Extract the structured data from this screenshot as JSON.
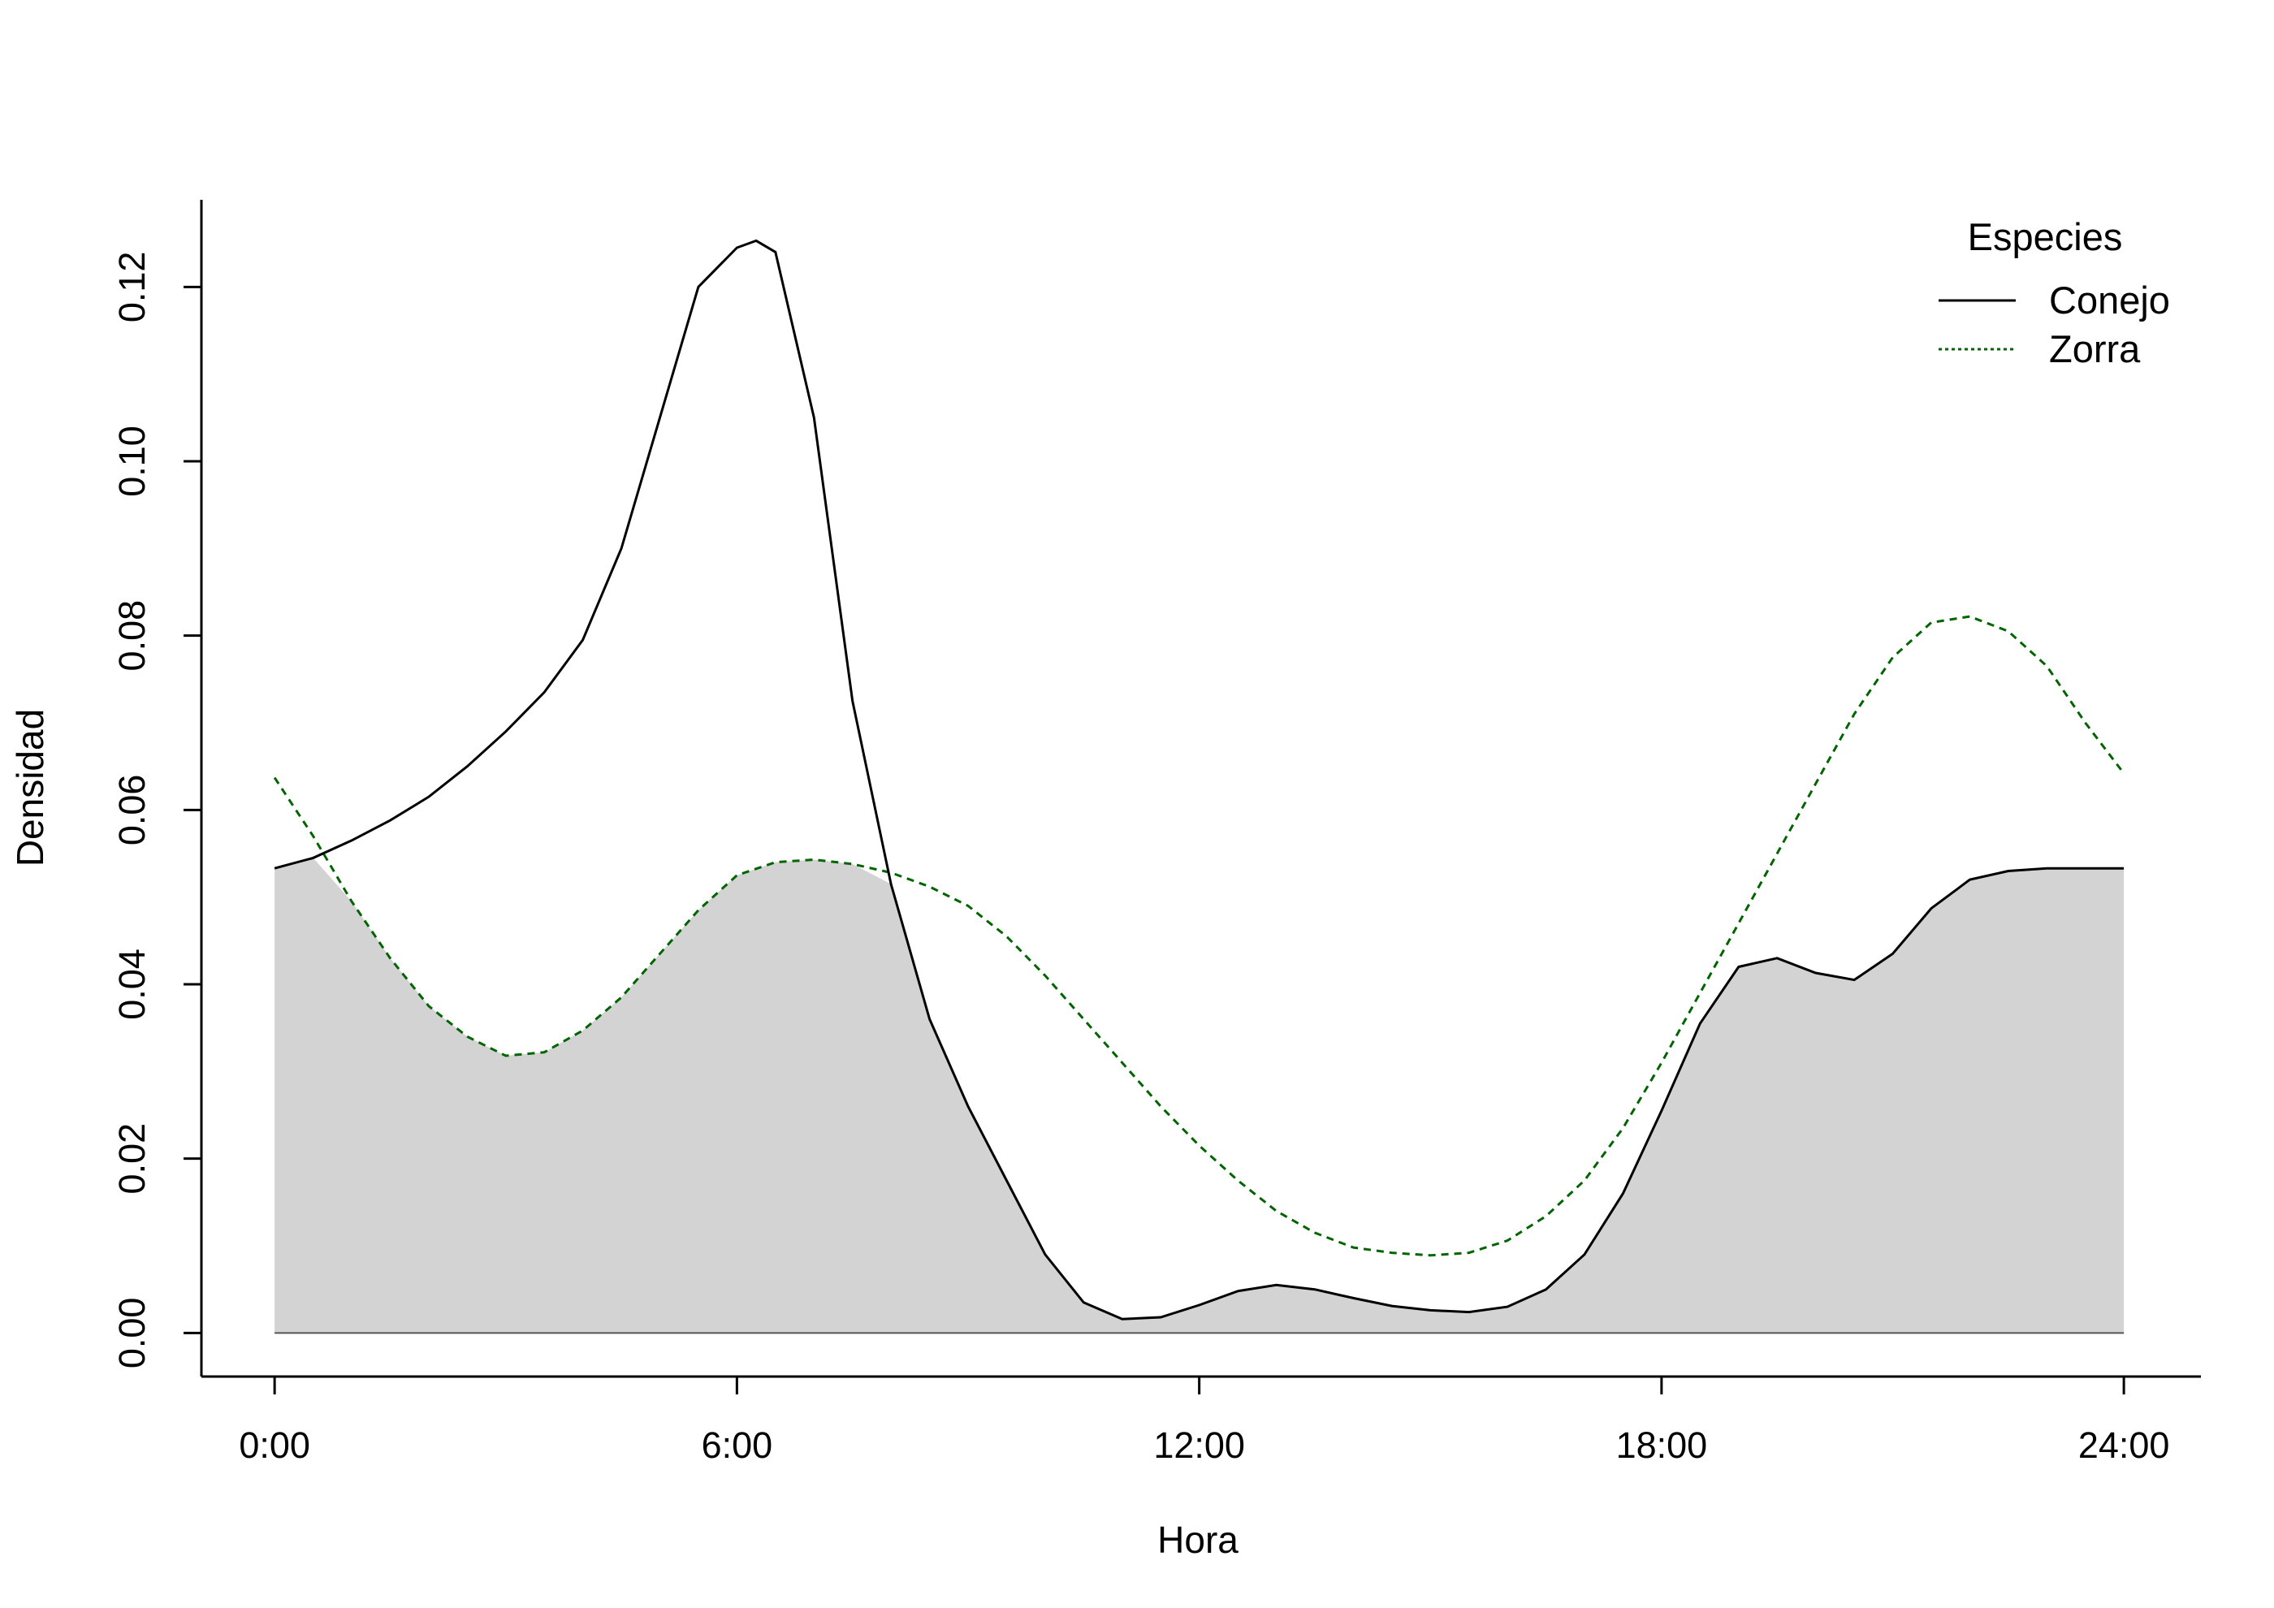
{
  "chart_data": {
    "type": "area",
    "title": "",
    "xlabel": "Hora",
    "ylabel": "Densidad",
    "xlim": [
      -0.95,
      25.0
    ],
    "ylim": [
      -0.005,
      0.13
    ],
    "x_ticks": [
      0,
      6,
      12,
      18,
      24
    ],
    "x_tick_labels": [
      "0:00",
      "6:00",
      "12:00",
      "18:00",
      "24:00"
    ],
    "y_ticks": [
      0.0,
      0.02,
      0.04,
      0.06,
      0.08,
      0.1,
      0.12
    ],
    "y_tick_labels": [
      "0.00",
      "0.02",
      "0.04",
      "0.06",
      "0.08",
      "0.10",
      "0.12"
    ],
    "grid": false,
    "overlap_fill": "#d3d3d3",
    "legend": {
      "title": "Especies",
      "position": "top-right",
      "items": [
        {
          "label": "Conejo",
          "color": "#000000",
          "dash": "solid"
        },
        {
          "label": "Zorra",
          "color": "#006400",
          "dash": "dotted"
        }
      ]
    },
    "series": [
      {
        "name": "Conejo",
        "color": "#000000",
        "dash": "solid",
        "x": [
          0,
          0.5,
          1,
          1.5,
          2,
          2.5,
          3,
          3.5,
          4,
          4.5,
          5,
          5.5,
          6,
          6.25,
          6.5,
          7,
          7.5,
          8,
          8.5,
          9,
          9.5,
          10,
          10.5,
          11,
          11.5,
          12,
          12.5,
          13,
          13.5,
          14,
          14.5,
          15,
          15.5,
          16,
          16.5,
          17,
          17.5,
          18,
          18.5,
          19,
          19.5,
          20,
          20.5,
          21,
          21.5,
          22,
          22.5,
          23,
          23.5,
          24
        ],
        "y": [
          0.0533,
          0.0545,
          0.0565,
          0.0588,
          0.0615,
          0.065,
          0.069,
          0.0735,
          0.0795,
          0.09,
          0.105,
          0.12,
          0.1245,
          0.1253,
          0.124,
          0.105,
          0.0725,
          0.0515,
          0.036,
          0.026,
          0.0175,
          0.009,
          0.0035,
          0.0016,
          0.0018,
          0.0032,
          0.0048,
          0.0055,
          0.005,
          0.004,
          0.0031,
          0.0026,
          0.0024,
          0.003,
          0.005,
          0.009,
          0.016,
          0.0255,
          0.0355,
          0.042,
          0.043,
          0.0413,
          0.0405,
          0.0435,
          0.0487,
          0.052,
          0.053,
          0.0533,
          0.0533,
          0.0533
        ]
      },
      {
        "name": "Zorra",
        "color": "#006400",
        "dash": "dotted",
        "x": [
          0,
          0.5,
          1,
          1.5,
          2,
          2.5,
          3,
          3.5,
          4,
          4.5,
          5,
          5.5,
          6,
          6.5,
          7,
          7.5,
          8,
          8.5,
          9,
          9.5,
          10,
          10.5,
          11,
          11.5,
          12,
          12.5,
          13,
          13.5,
          14,
          14.5,
          15,
          15.5,
          16,
          16.5,
          17,
          17.5,
          18,
          18.5,
          19,
          19.5,
          20,
          20.5,
          21,
          21.5,
          22,
          22.5,
          23,
          23.5,
          24
        ],
        "y": [
          0.0637,
          0.057,
          0.0495,
          0.043,
          0.0375,
          0.034,
          0.0318,
          0.0322,
          0.0347,
          0.0385,
          0.0435,
          0.0485,
          0.0525,
          0.054,
          0.0543,
          0.0538,
          0.0528,
          0.0512,
          0.049,
          0.0455,
          0.041,
          0.036,
          0.031,
          0.026,
          0.0215,
          0.0175,
          0.014,
          0.0115,
          0.0098,
          0.0092,
          0.0089,
          0.0092,
          0.0106,
          0.0134,
          0.0175,
          0.0235,
          0.031,
          0.039,
          0.047,
          0.055,
          0.063,
          0.071,
          0.0775,
          0.0815,
          0.0822,
          0.0805,
          0.0765,
          0.07,
          0.0642
        ]
      }
    ]
  }
}
